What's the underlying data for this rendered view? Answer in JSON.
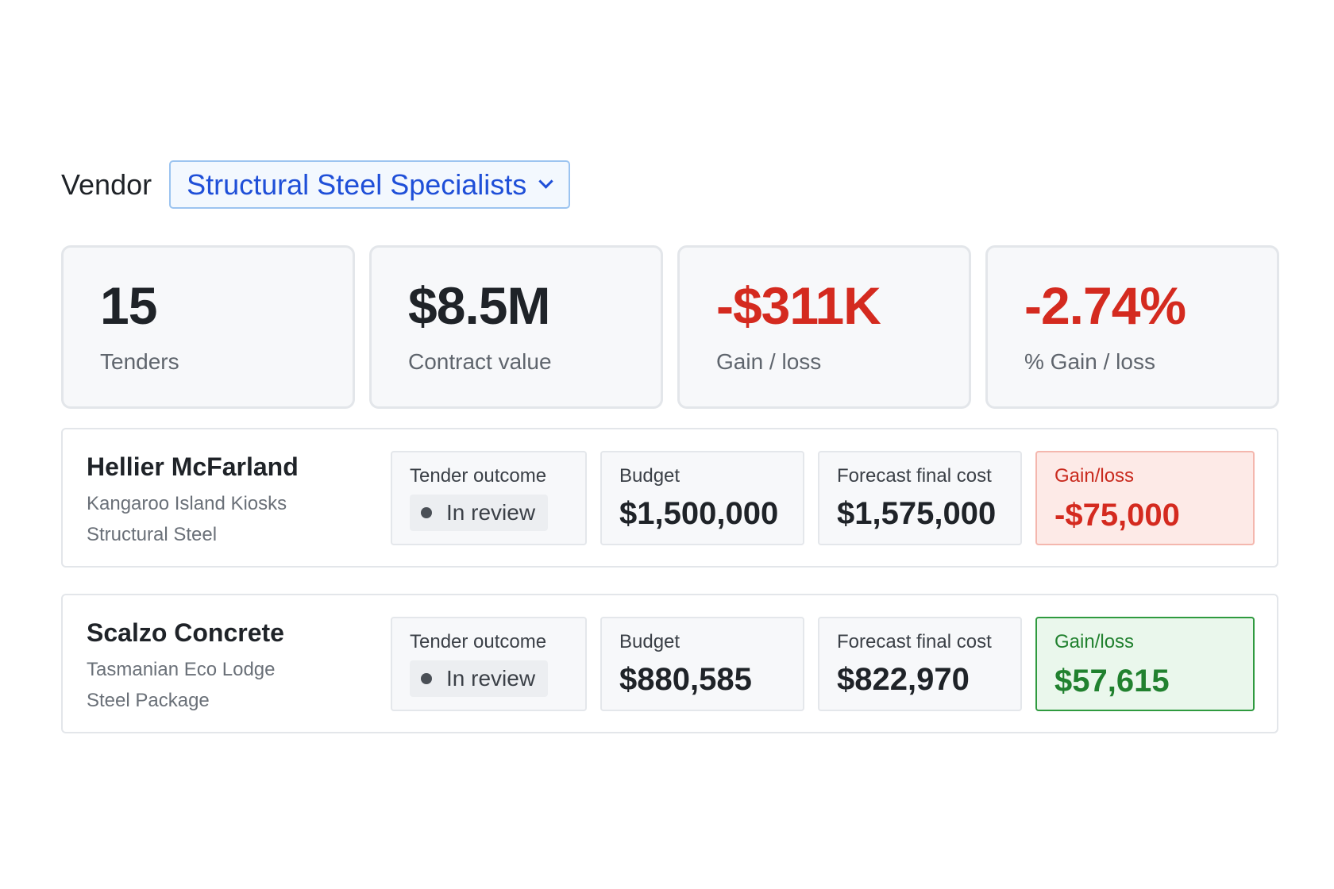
{
  "vendor_filter": {
    "label": "Vendor",
    "selected": "Structural Steel Specialists",
    "icon": "chevron-down-icon",
    "accent_color": "#1f4fd8"
  },
  "stats": [
    {
      "value": "15",
      "label": "Tenders",
      "tone": "neutral"
    },
    {
      "value": "$8.5M",
      "label": "Contract value",
      "tone": "neutral"
    },
    {
      "value": "-$311K",
      "label": "Gain / loss",
      "tone": "negative"
    },
    {
      "value": "-2.74%",
      "label": "% Gain / loss",
      "tone": "negative"
    }
  ],
  "tenders": [
    {
      "vendor": "Hellier McFarland",
      "project": "Kangaroo Island Kiosks",
      "package": "Structural Steel",
      "outcome_label": "Tender outcome",
      "outcome_value": "In review",
      "budget_label": "Budget",
      "budget_value": "$1,500,000",
      "forecast_label": "Forecast final cost",
      "forecast_value": "$1,575,000",
      "gain_label": "Gain/loss",
      "gain_value": "-$75,000",
      "gain_tone": "negative"
    },
    {
      "vendor": "Scalzo Concrete",
      "project": "Tasmanian Eco Lodge",
      "package": "Steel Package",
      "outcome_label": "Tender outcome",
      "outcome_value": "In review",
      "budget_label": "Budget",
      "budget_value": "$880,585",
      "forecast_label": "Forecast final cost",
      "forecast_value": "$822,970",
      "gain_label": "Gain/loss",
      "gain_value": "$57,615",
      "gain_tone": "positive"
    }
  ],
  "colors": {
    "negative": "#d42a1f",
    "positive": "#21812f"
  }
}
